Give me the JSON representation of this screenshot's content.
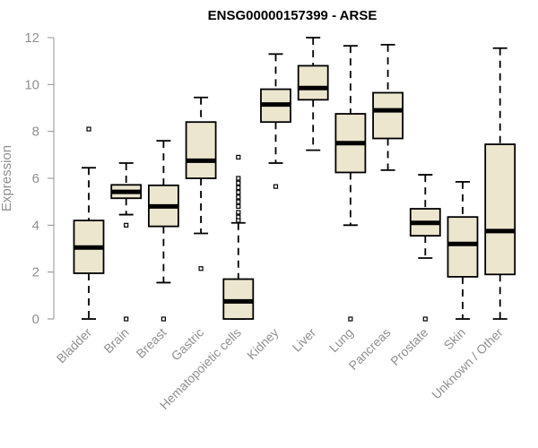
{
  "chart_data": {
    "type": "boxplot",
    "title": "ENSG00000157399 - ARSE",
    "xlabel": "",
    "ylabel": "Expression",
    "ylim": [
      0,
      12
    ],
    "yticks": [
      0,
      2,
      4,
      6,
      8,
      10,
      12
    ],
    "colors": {
      "box_fill": "#ede6cf",
      "stroke": "#000000",
      "axis_text": "#909090"
    },
    "categories": [
      "Bladder",
      "Brain",
      "Breast",
      "Gastric",
      "Hematopoietic cells",
      "Kidney",
      "Liver",
      "Lung",
      "Pancreas",
      "Prostate",
      "Skin",
      "Unknown / Other"
    ],
    "boxes": [
      {
        "name": "Bladder",
        "whisker_low": 0.0,
        "q1": 1.95,
        "median": 3.05,
        "q3": 4.2,
        "whisker_high": 6.45,
        "outliers": [
          8.1
        ]
      },
      {
        "name": "Brain",
        "whisker_low": 4.45,
        "q1": 5.15,
        "median": 5.42,
        "q3": 5.72,
        "whisker_high": 6.65,
        "outliers": [
          4.0,
          0.0
        ]
      },
      {
        "name": "Breast",
        "whisker_low": 1.55,
        "q1": 3.95,
        "median": 4.8,
        "q3": 5.7,
        "whisker_high": 7.6,
        "outliers": [
          0.0
        ]
      },
      {
        "name": "Gastric",
        "whisker_low": 3.65,
        "q1": 6.0,
        "median": 6.75,
        "q3": 8.4,
        "whisker_high": 9.45,
        "outliers": [
          2.15
        ]
      },
      {
        "name": "Hematopoietic cells",
        "whisker_low": 0.0,
        "q1": 0.0,
        "median": 0.75,
        "q3": 1.7,
        "whisker_high": 4.1,
        "outliers": [
          6.9,
          6.0,
          5.8,
          5.6,
          5.4,
          5.2,
          5.0,
          4.8,
          4.55,
          4.35,
          4.2
        ]
      },
      {
        "name": "Kidney",
        "whisker_low": 6.65,
        "q1": 8.4,
        "median": 9.15,
        "q3": 9.8,
        "whisker_high": 11.3,
        "outliers": [
          5.65
        ]
      },
      {
        "name": "Liver",
        "whisker_low": 7.2,
        "q1": 9.35,
        "median": 9.85,
        "q3": 10.8,
        "whisker_high": 12.0,
        "outliers": []
      },
      {
        "name": "Lung",
        "whisker_low": 4.0,
        "q1": 6.25,
        "median": 7.5,
        "q3": 8.75,
        "whisker_high": 11.65,
        "outliers": [
          0.0
        ]
      },
      {
        "name": "Pancreas",
        "whisker_low": 6.35,
        "q1": 7.7,
        "median": 8.9,
        "q3": 9.65,
        "whisker_high": 11.7,
        "outliers": []
      },
      {
        "name": "Prostate",
        "whisker_low": 2.6,
        "q1": 3.55,
        "median": 4.1,
        "q3": 4.7,
        "whisker_high": 6.15,
        "outliers": [
          0.0
        ]
      },
      {
        "name": "Skin",
        "whisker_low": 0.0,
        "q1": 1.8,
        "median": 3.2,
        "q3": 4.35,
        "whisker_high": 5.85,
        "outliers": []
      },
      {
        "name": "Unknown / Other",
        "whisker_low": 0.0,
        "q1": 1.9,
        "median": 3.75,
        "q3": 7.45,
        "whisker_high": 11.55,
        "outliers": []
      }
    ]
  }
}
